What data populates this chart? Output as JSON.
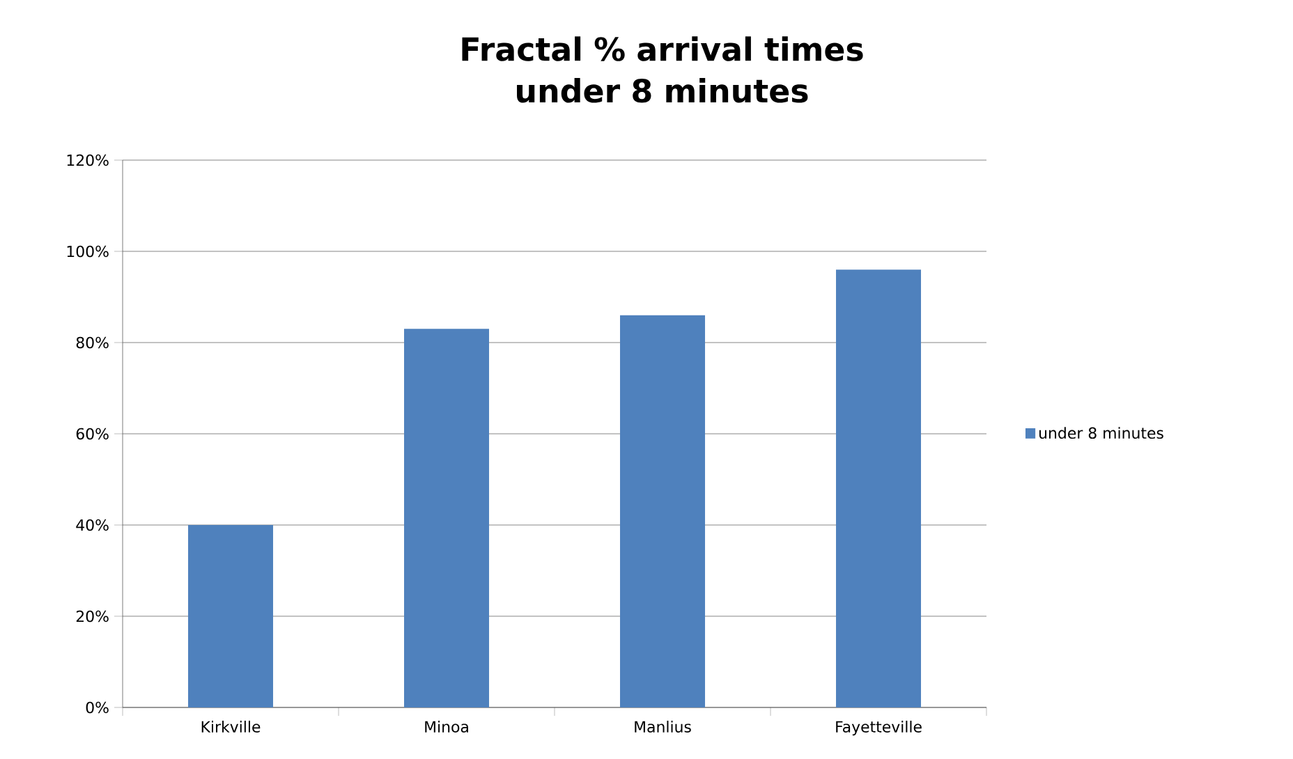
{
  "chart_data": {
    "type": "bar",
    "title": "Fractal % arrival times under 8 minutes",
    "categories": [
      "Kirkville",
      "Minoa",
      "Manlius",
      "Fayetteville"
    ],
    "series": [
      {
        "name": "under 8 minutes",
        "color": "#4f81bd",
        "values": [
          40,
          83,
          86,
          96
        ]
      }
    ],
    "ylim": [
      0,
      120
    ],
    "yticks": [
      {
        "value": 0,
        "label": "0%"
      },
      {
        "value": 20,
        "label": "20%"
      },
      {
        "value": 40,
        "label": "40%"
      },
      {
        "value": 60,
        "label": "60%"
      },
      {
        "value": 80,
        "label": "80%"
      },
      {
        "value": 100,
        "label": "100%"
      },
      {
        "value": 120,
        "label": "120%"
      }
    ],
    "grid": "y",
    "legend": "right"
  }
}
